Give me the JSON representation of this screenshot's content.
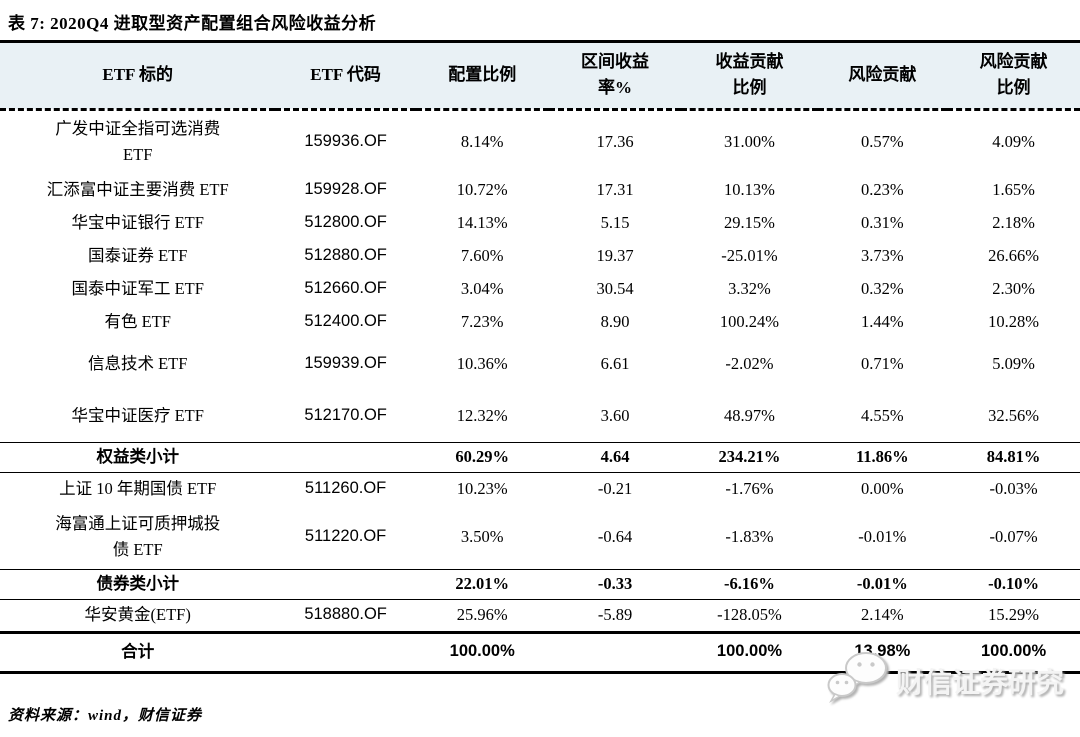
{
  "title": "表 7:  2020Q4 进取型资产配置组合风险收益分析",
  "table": {
    "columns": [
      {
        "id": "name",
        "lines": [
          "ETF 标的"
        ]
      },
      {
        "id": "code",
        "lines": [
          "ETF 代码"
        ]
      },
      {
        "id": "alloc",
        "lines": [
          "配置比例"
        ]
      },
      {
        "id": "interval-return",
        "lines": [
          "区间收益",
          "率%"
        ]
      },
      {
        "id": "return-contrib",
        "lines": [
          "收益贡献",
          "比例"
        ]
      },
      {
        "id": "risk-contrib",
        "lines": [
          "风险贡献"
        ]
      },
      {
        "id": "risk-contrib-pct",
        "lines": [
          "风险贡献",
          "比例"
        ]
      }
    ],
    "rows": [
      {
        "name": [
          "广发中证全指可选消费",
          "ETF"
        ],
        "code": "159936.OF",
        "values": [
          "8.14%",
          "17.36",
          "31.00%",
          "0.57%",
          "4.09%"
        ],
        "variant": "twoline"
      },
      {
        "name": [
          "汇添富中证主要消费 ETF"
        ],
        "code": "159928.OF",
        "values": [
          "10.72%",
          "17.31",
          "10.13%",
          "0.23%",
          "1.65%"
        ],
        "variant": "normal"
      },
      {
        "name": [
          "华宝中证银行 ETF"
        ],
        "code": "512800.OF",
        "values": [
          "14.13%",
          "5.15",
          "29.15%",
          "0.31%",
          "2.18%"
        ],
        "variant": "normal"
      },
      {
        "name": [
          "国泰证券 ETF"
        ],
        "code": "512880.OF",
        "values": [
          "7.60%",
          "19.37",
          "-25.01%",
          "3.73%",
          "26.66%"
        ],
        "variant": "normal"
      },
      {
        "name": [
          "国泰中证军工 ETF"
        ],
        "code": "512660.OF",
        "values": [
          "3.04%",
          "30.54",
          "3.32%",
          "0.32%",
          "2.30%"
        ],
        "variant": "normal"
      },
      {
        "name": [
          "有色 ETF"
        ],
        "code": "512400.OF",
        "values": [
          "7.23%",
          "8.90",
          "100.24%",
          "1.44%",
          "10.28%"
        ],
        "variant": "normal"
      },
      {
        "name": [
          "信息技术 ETF"
        ],
        "code": "159939.OF",
        "values": [
          "10.36%",
          "6.61",
          "-2.02%",
          "0.71%",
          "5.09%"
        ],
        "variant": "tall"
      },
      {
        "name": [
          "华宝中证医疗 ETF"
        ],
        "code": "512170.OF",
        "values": [
          "12.32%",
          "3.60",
          "48.97%",
          "4.55%",
          "32.56%"
        ],
        "variant": "tall"
      },
      {
        "name": [
          "权益类小计"
        ],
        "code": "",
        "values": [
          "60.29%",
          "4.64",
          "234.21%",
          "11.86%",
          "84.81%"
        ],
        "variant": "subtotal"
      },
      {
        "name": [
          "上证 10 年期国债 ETF"
        ],
        "code": "511260.OF",
        "values": [
          "10.23%",
          "-0.21",
          "-1.76%",
          "0.00%",
          "-0.03%"
        ],
        "variant": "normal"
      },
      {
        "name": [
          "海富通上证可质押城投",
          "债 ETF"
        ],
        "code": "511220.OF",
        "values": [
          "3.50%",
          "-0.64",
          "-1.83%",
          "-0.01%",
          "-0.07%"
        ],
        "variant": "twoline"
      },
      {
        "name": [
          "债券类小计"
        ],
        "code": "",
        "values": [
          "22.01%",
          "-0.33",
          "-6.16%",
          "-0.01%",
          "-0.10%"
        ],
        "variant": "subtotal"
      },
      {
        "name": [
          "华安黄金(ETF)"
        ],
        "code": "518880.OF",
        "values": [
          "25.96%",
          "-5.89",
          "-128.05%",
          "2.14%",
          "15.29%"
        ],
        "variant": "normal"
      },
      {
        "name": [
          "合计"
        ],
        "code": "",
        "values": [
          "100.00%",
          "",
          "100.00%",
          "13.98%",
          "100.00%"
        ],
        "variant": "total"
      }
    ]
  },
  "source": "资料来源：wind，财信证券",
  "watermark": {
    "icon": "wechat-icon",
    "text": "财信证券研究"
  },
  "colors": {
    "header_background": "#e9f1f5",
    "rule": "#000000",
    "watermark_text": "#f4f4f4",
    "watermark_shadow": "#aeaeae"
  }
}
